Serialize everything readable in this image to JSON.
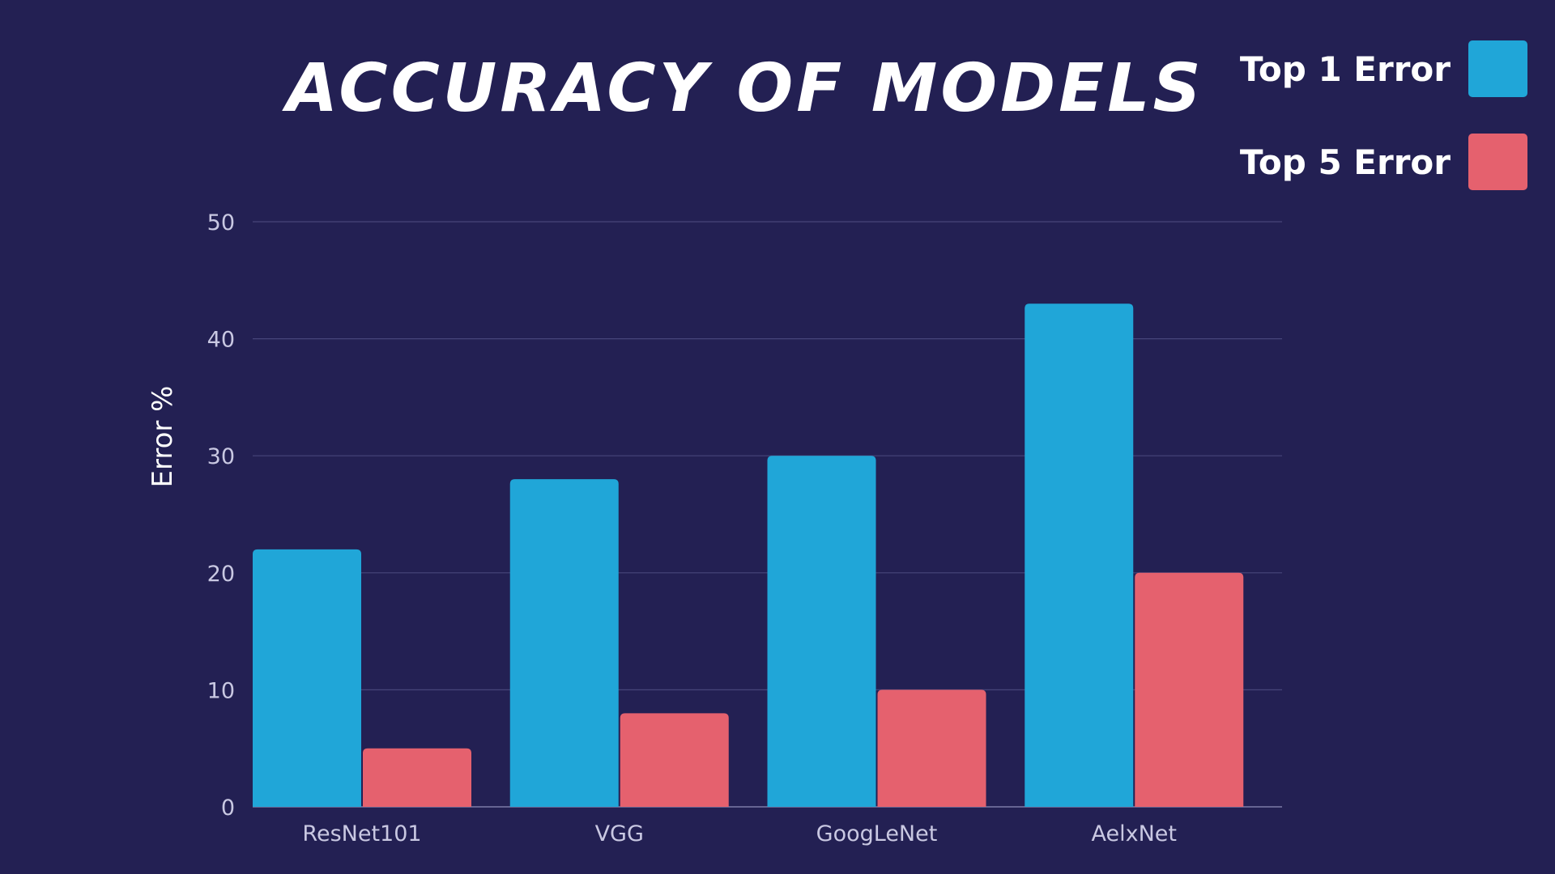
{
  "chart_data": {
    "type": "bar",
    "title": "Accuracy of Models",
    "xlabel": "",
    "ylabel": "Error %",
    "categories": [
      "ResNet101",
      "VGG",
      "GoogLeNet",
      "AelxNet"
    ],
    "series": [
      {
        "name": "Top 1 Error",
        "values": [
          22,
          28,
          30,
          43
        ],
        "color": "#20a6d8"
      },
      {
        "name": "Top 5 Error",
        "values": [
          5,
          8,
          10,
          20
        ],
        "color": "#e5616e"
      }
    ],
    "ylim": [
      0,
      50
    ],
    "yticks": [
      0,
      10,
      20,
      30,
      40,
      50
    ],
    "grid": true,
    "legend_position": "top-right"
  },
  "colors": {
    "background": "#232053",
    "gridline": "#47457a",
    "tick_text": "#c9c8e2"
  }
}
